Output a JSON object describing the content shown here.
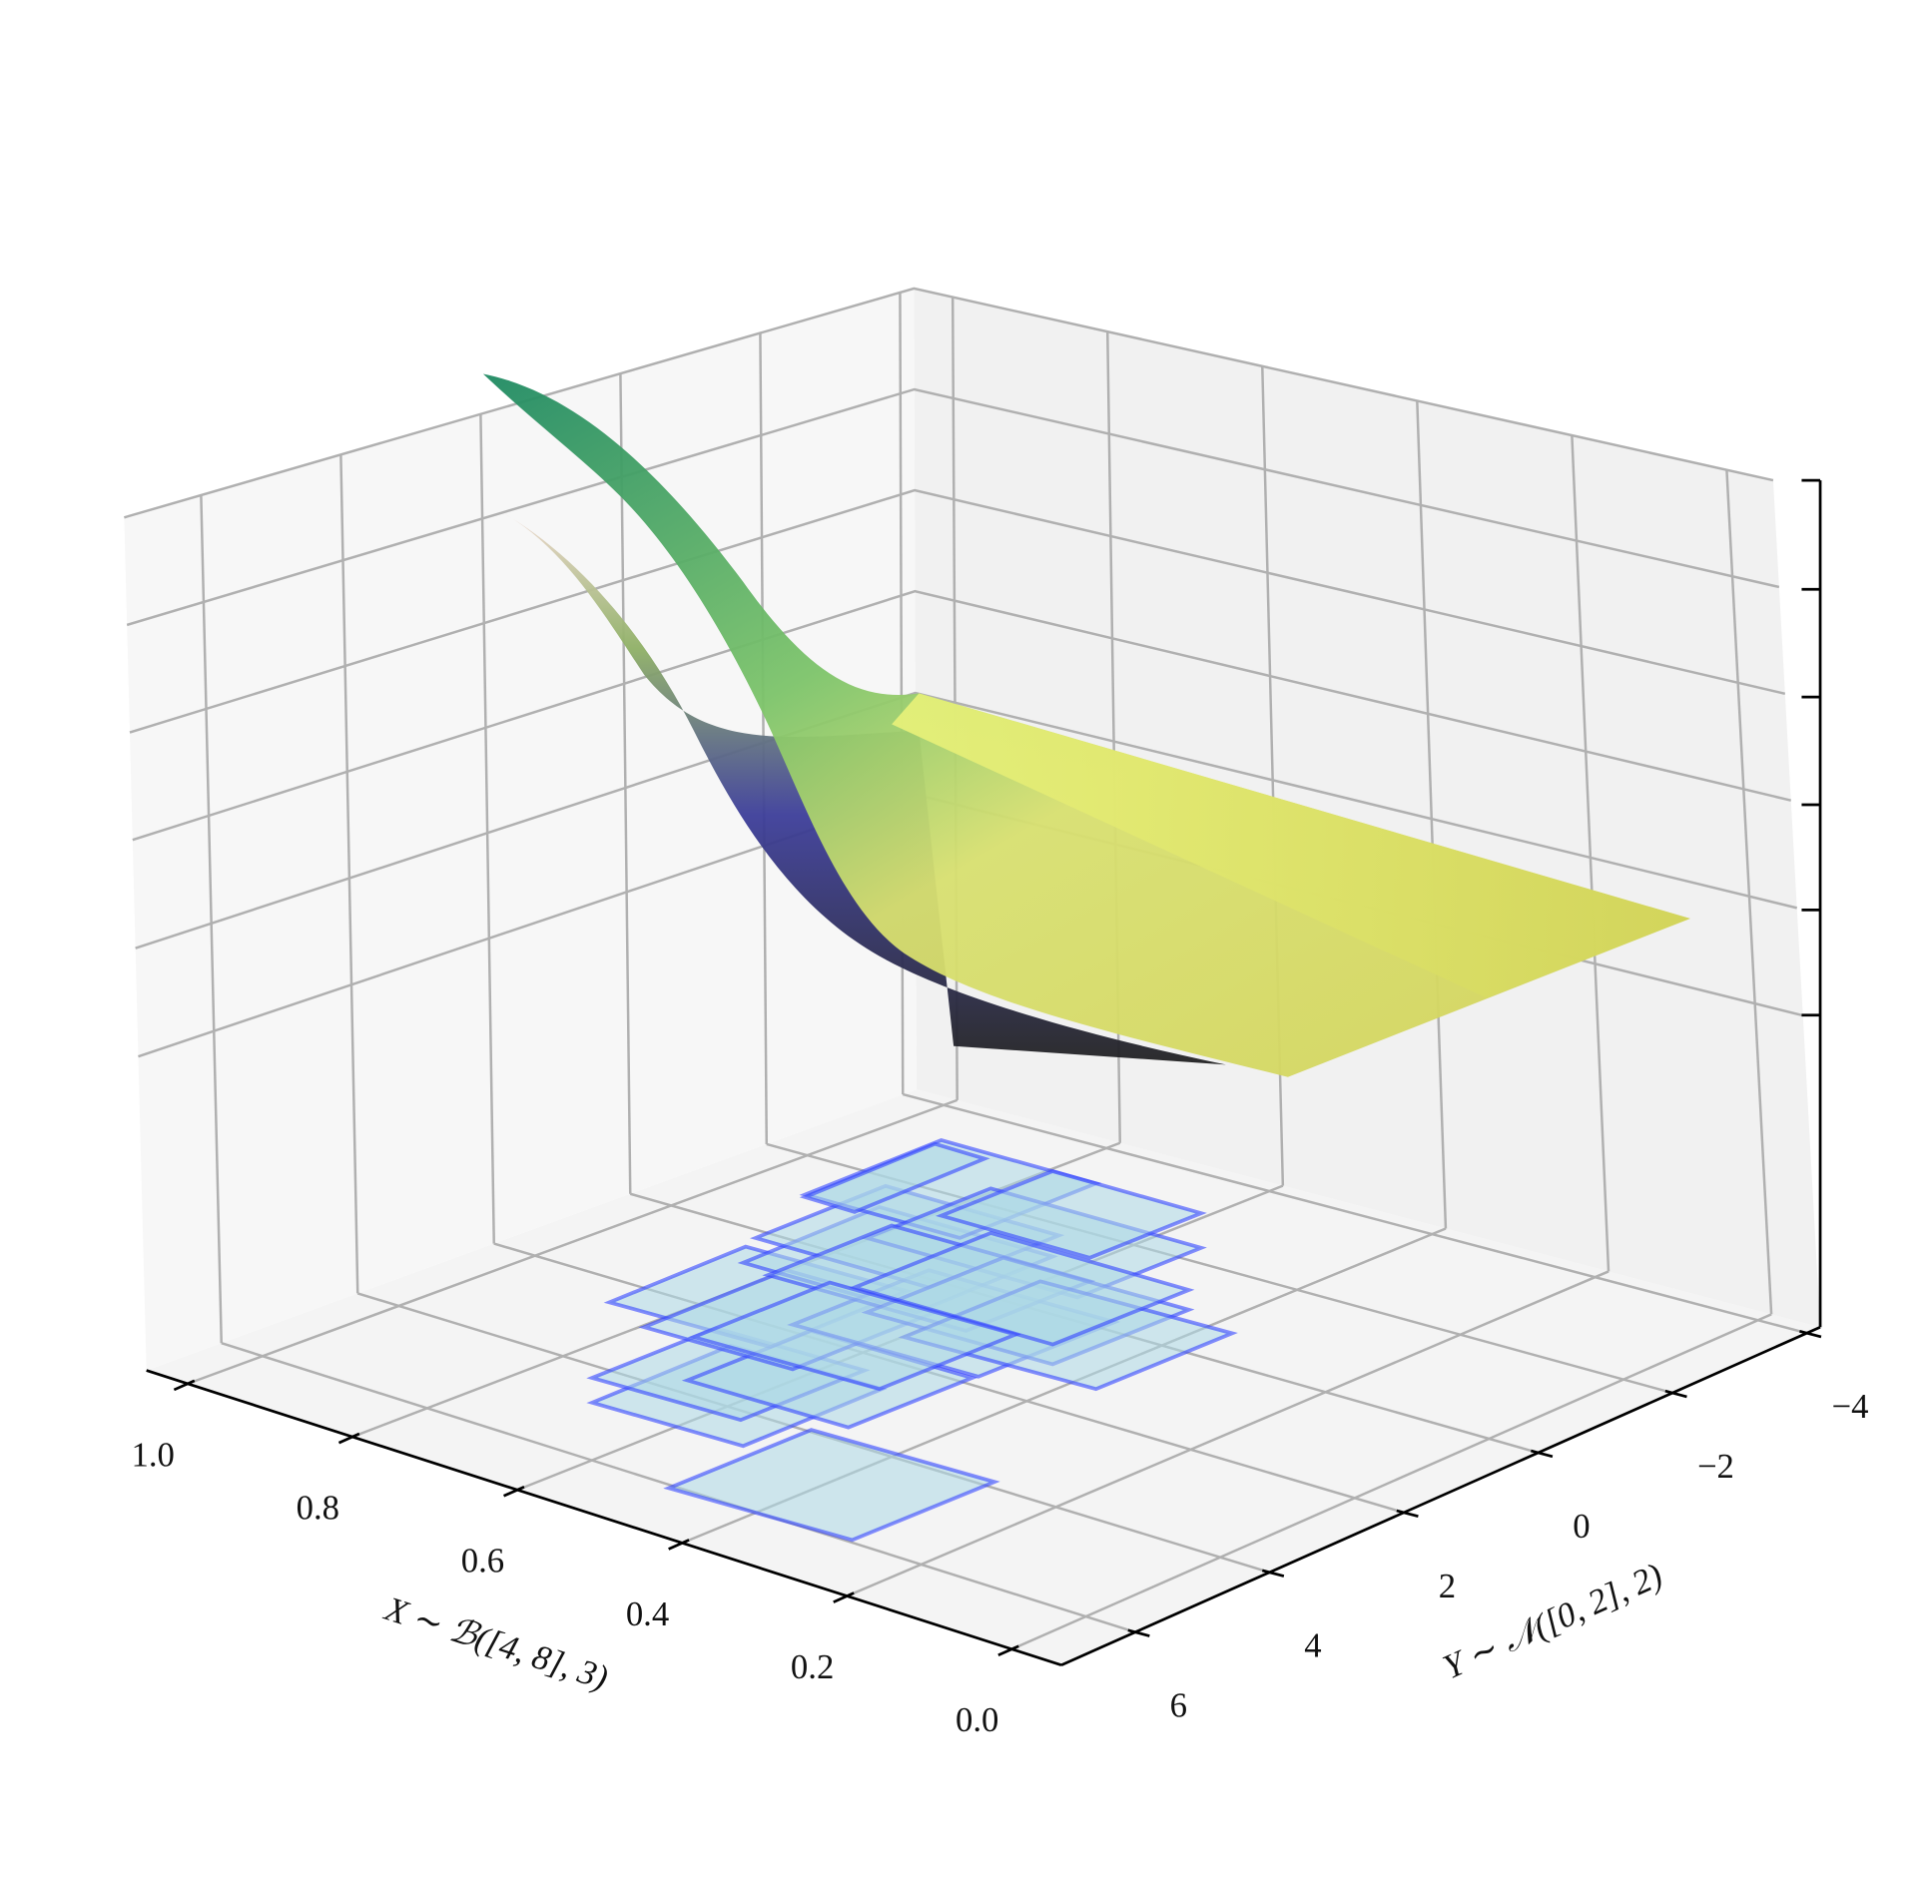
{
  "chart_data": {
    "type": "surface3d",
    "xlabel": "X ∼ ℬ([4, 8], 3)",
    "ylabel": "Y ∼ 𝒩([0, 2], 2)",
    "xlim": [
      -0.06,
      1.05
    ],
    "xticks": [
      {
        "value": 0,
        "label": "0.0"
      },
      0.2,
      0.4,
      0.6,
      0.8,
      {
        "value": 1,
        "label": "1.0"
      }
    ],
    "ylim": [
      -4.2,
      7.1
    ],
    "yticks": [
      {
        "value": -4,
        "label": "−4"
      },
      {
        "value": -2,
        "label": "−2"
      },
      0,
      2,
      4,
      6
    ],
    "grid": true
  }
}
